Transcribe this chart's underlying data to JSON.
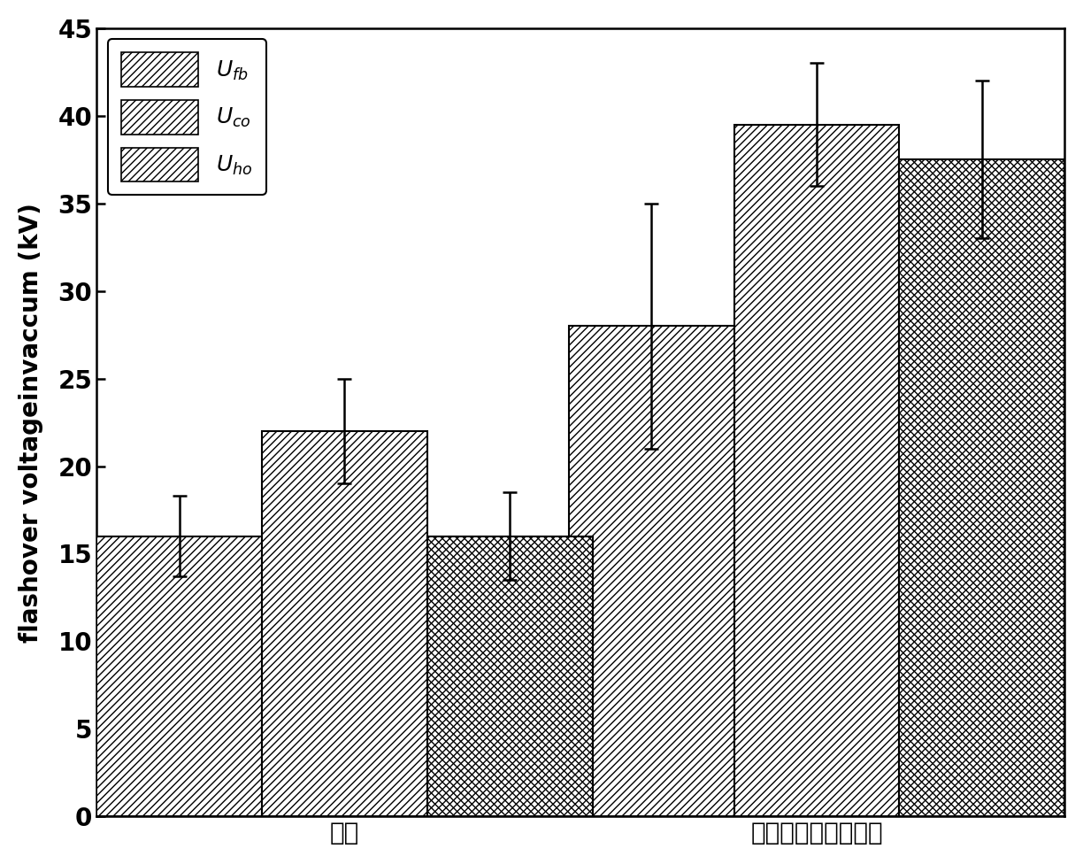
{
  "groups": [
    "基底",
    "涂覆改性纳米氧化铝"
  ],
  "series": [
    {
      "label": "$U_{fb}$",
      "values": [
        16.0,
        28.0
      ],
      "errors": [
        2.3,
        7.0
      ],
      "hatch": "////",
      "facecolor": "white",
      "edgecolor": "black"
    },
    {
      "label": "$U_{co}$",
      "values": [
        22.0,
        39.5
      ],
      "errors": [
        3.0,
        3.5
      ],
      "hatch": "////",
      "facecolor": "white",
      "edgecolor": "black"
    },
    {
      "label": "$U_{ho}$",
      "values": [
        16.0,
        37.5
      ],
      "errors": [
        2.5,
        4.5
      ],
      "hatch": "chevron",
      "facecolor": "white",
      "edgecolor": "black"
    }
  ],
  "ylim": [
    0,
    45
  ],
  "yticks": [
    0,
    5,
    10,
    15,
    20,
    25,
    30,
    35,
    40,
    45
  ],
  "ylabel": "flashover voltageinvaccum (kV)",
  "bar_width": 0.28,
  "background_color": "white",
  "legend_loc": "upper left",
  "axis_fontsize": 20,
  "tick_fontsize": 20,
  "legend_fontsize": 18,
  "group_centers": [
    0.42,
    1.22
  ]
}
